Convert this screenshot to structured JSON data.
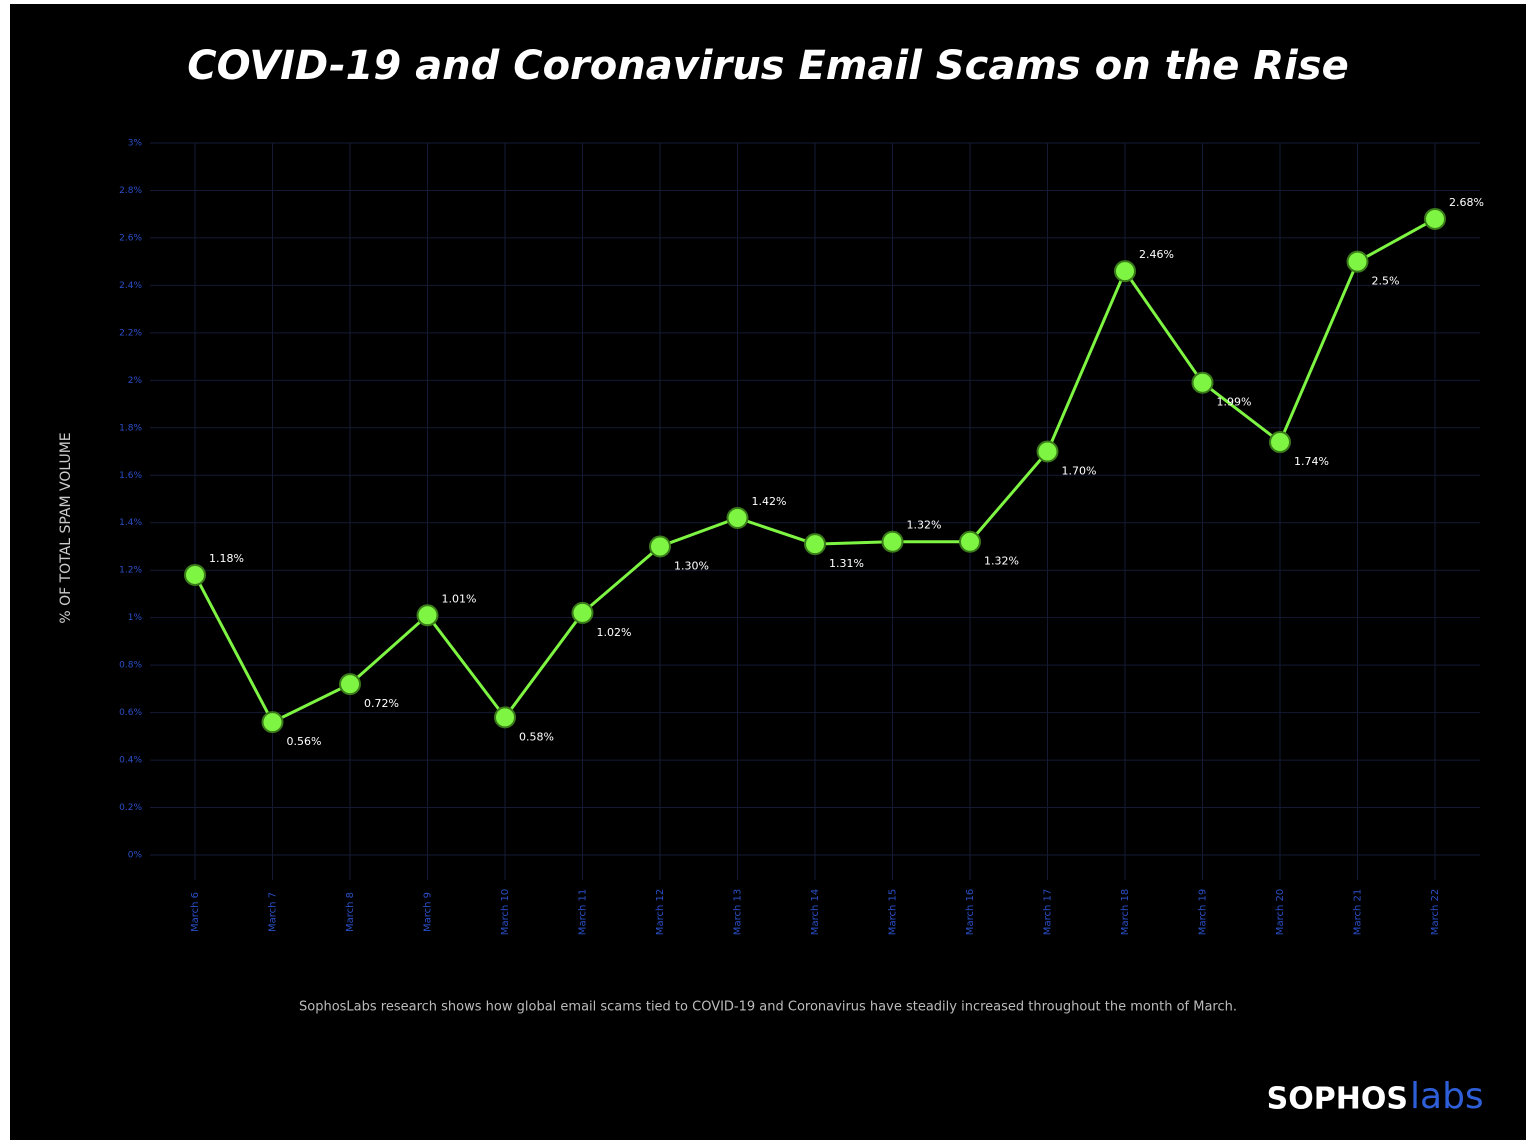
{
  "chart_data": {
    "type": "line",
    "title": "COVID-19 and Coronavirus Email Scams on the Rise",
    "y_label": "% OF TOTAL SPAM VOLUME",
    "caption": "SophosLabs research shows how global email scams tied to COVID-19 and Coronavirus have steadily increased throughout the month of March.",
    "logo": [
      "SOPHOS",
      "labs"
    ],
    "categories": [
      "March 6",
      "March 7",
      "March 8",
      "March 9",
      "March 10",
      "March 11",
      "March 12",
      "March 13",
      "March 14",
      "March 15",
      "March 16",
      "March 17",
      "March 18",
      "March 19",
      "March 20",
      "March 21",
      "March 22"
    ],
    "series": [
      {
        "name": "% of total spam volume",
        "color": "#7ef542",
        "values": [
          1.18,
          0.56,
          0.72,
          1.01,
          0.58,
          1.02,
          1.3,
          1.42,
          1.31,
          1.32,
          1.32,
          1.7,
          2.46,
          1.99,
          1.74,
          2.5,
          2.68
        ],
        "value_labels": [
          "1.18%",
          "0.56%",
          "0.72%",
          "1.01%",
          "0.58%",
          "1.02%",
          "1.30%",
          "1.42%",
          "1.31%",
          "1.32%",
          "1.32%",
          "1.70%",
          "2.46%",
          "1.99%",
          "1.74%",
          "2.5%",
          "2.68%"
        ]
      }
    ],
    "ylim": [
      0,
      3
    ],
    "yticks": [
      {
        "value": 0,
        "label": "0%"
      },
      {
        "value": 0.2,
        "label": "0.2%"
      },
      {
        "value": 0.4,
        "label": "0.4%"
      },
      {
        "value": 0.6,
        "label": "0.6%"
      },
      {
        "value": 0.8,
        "label": "0.8%"
      },
      {
        "value": 1,
        "label": "1%"
      },
      {
        "value": 1.2,
        "label": "1.2%"
      },
      {
        "value": 1.4,
        "label": "1.4%"
      },
      {
        "value": 1.6,
        "label": "1.6%"
      },
      {
        "value": 1.8,
        "label": "1.8%"
      },
      {
        "value": 2,
        "label": "2%"
      },
      {
        "value": 2.2,
        "label": "2.2%"
      },
      {
        "value": 2.4,
        "label": "2.4%"
      },
      {
        "value": 2.6,
        "label": "2.6%"
      },
      {
        "value": 2.8,
        "label": "2.8%"
      },
      {
        "value": 3,
        "label": "3%"
      }
    ],
    "grid": true
  }
}
